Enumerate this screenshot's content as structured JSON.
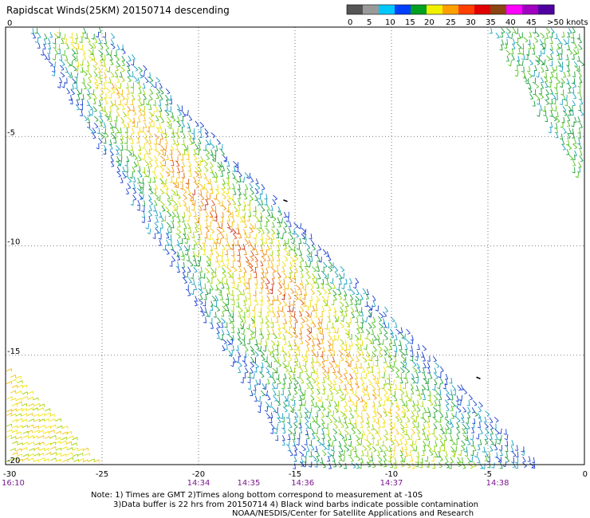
{
  "title": "Rapidscat Winds(25KM) 20150714 descending",
  "colors": {
    "grid": "#555555",
    "time_label": "#7a1a8c",
    "swath_palette": [
      "#1a3fd0",
      "#1aa0c0",
      "#1e9e3c",
      "#4fc21a",
      "#9ed400",
      "#f2e20a",
      "#f4c010",
      "#f08a12",
      "#e04a0c",
      "#c0281a",
      "#7a3a18"
    ]
  },
  "legend": {
    "labels": [
      "0",
      "5",
      "10",
      "15",
      "20",
      "25",
      "30",
      "35",
      "40",
      "45",
      ">50 knots"
    ],
    "colors": [
      "#555555",
      "#9a9a9a",
      "#00c8ff",
      "#0040ff",
      "#00a020",
      "#f0f000",
      "#ffa000",
      "#ff4000",
      "#e00000",
      "#8b4513",
      "#ff00ff",
      "#a000c0",
      "#5000a0"
    ]
  },
  "chart_data": {
    "type": "scatter",
    "title": "Rapidscat Winds(25KM) 20150714 descending",
    "xlim": [
      -30,
      0
    ],
    "ylim": [
      -20,
      0
    ],
    "x_ticks": [
      "-30",
      "-25",
      "-20",
      "-15",
      "-10",
      "-5",
      "0"
    ],
    "y_ticks": [
      "0",
      "-5",
      "-10",
      "-15",
      "-20"
    ],
    "grid": true,
    "x_tick_values": [
      -30,
      -25,
      -20,
      -15,
      -10,
      -5,
      0
    ],
    "y_tick_values": [
      0,
      -5,
      -10,
      -15,
      -20
    ],
    "time_labels": [
      {
        "x": -30,
        "label": "16:10"
      },
      {
        "x": -20,
        "label": "14:34"
      },
      {
        "x": -17.4,
        "label": "14:35"
      },
      {
        "x": -14.6,
        "label": "14:36"
      },
      {
        "x": -10,
        "label": "14:37"
      },
      {
        "x": -4.5,
        "label": "14:38"
      }
    ],
    "swaths": [
      {
        "corners": [
          [
            -28.9,
            0
          ],
          [
            -24.8,
            0
          ],
          [
            -2.2,
            -20
          ],
          [
            -15.0,
            -20
          ]
        ]
      },
      {
        "corners": [
          [
            -4.9,
            0
          ],
          [
            0,
            0
          ],
          [
            0,
            -7.3
          ]
        ]
      },
      {
        "corners": [
          [
            -30,
            -15.5
          ],
          [
            -25.3,
            -20
          ],
          [
            -30,
            -20
          ]
        ]
      }
    ],
    "contaminated_points": [
      [
        -15.6,
        -7.9
      ],
      [
        -5.6,
        -16.0
      ]
    ]
  },
  "notes": {
    "line1": "Note: 1) Times are GMT 2)Times along bottom correspond to measurement at -10S",
    "line2": "3)Data buffer is 22 hrs from 20150714 4) Black wind barbs indicate possible contamination",
    "line3": "NOAA/NESDIS/Center for Satellite Applications and Research"
  }
}
